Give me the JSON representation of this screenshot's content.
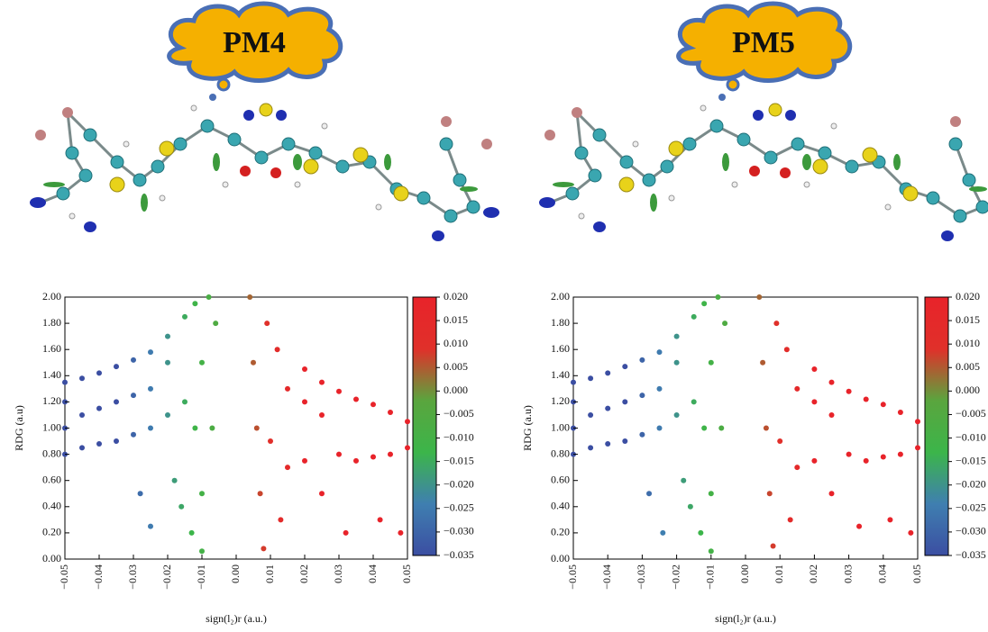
{
  "chart_data": [
    {
      "type": "scatter",
      "title": "PM4",
      "x_label": "sign(l₂)r (a.u.)",
      "y_label": "RDG (a.u)",
      "xlim": [
        -0.05,
        0.05
      ],
      "ylim": [
        0,
        2
      ],
      "xticks": [
        {
          "value": -0.05,
          "label": "−0.05"
        },
        {
          "value": -0.04,
          "label": "−0.04"
        },
        {
          "value": -0.03,
          "label": "−0.03"
        },
        {
          "value": -0.02,
          "label": "−0.02"
        },
        {
          "value": -0.01,
          "label": "−0.01"
        },
        {
          "value": 0,
          "label": "0.00"
        },
        {
          "value": 0.01,
          "label": "0.01"
        },
        {
          "value": 0.02,
          "label": "0.02"
        },
        {
          "value": 0.03,
          "label": "0.03"
        },
        {
          "value": 0.04,
          "label": "0.04"
        },
        {
          "value": 0.05,
          "label": "0.05"
        }
      ],
      "yticks": [
        {
          "value": 0,
          "label": "0.00"
        },
        {
          "value": 0.2,
          "label": "0.20"
        },
        {
          "value": 0.4,
          "label": "0.40"
        },
        {
          "value": 0.6,
          "label": "0.60"
        },
        {
          "value": 0.8,
          "label": "0.80"
        },
        {
          "value": 1,
          "label": "1.00"
        },
        {
          "value": 1.2,
          "label": "1.20"
        },
        {
          "value": 1.4,
          "label": "1.40"
        },
        {
          "value": 1.6,
          "label": "1.60"
        },
        {
          "value": 1.8,
          "label": "1.80"
        },
        {
          "value": 2,
          "label": "2.00"
        }
      ],
      "colorbar_lim": [
        -0.035,
        0.02
      ],
      "colorbar_ticks": [
        {
          "value": 0.02,
          "label": "0.020"
        },
        {
          "value": 0.015,
          "label": "0.015"
        },
        {
          "value": 0.01,
          "label": "0.010"
        },
        {
          "value": 0.005,
          "label": "0.005"
        },
        {
          "value": 0,
          "label": "0.000"
        },
        {
          "value": -0.005,
          "label": "−0.005"
        },
        {
          "value": -0.01,
          "label": "−0.010"
        },
        {
          "value": -0.015,
          "label": "−0.015"
        },
        {
          "value": -0.02,
          "label": "−0.020"
        },
        {
          "value": -0.025,
          "label": "−0.025"
        },
        {
          "value": -0.03,
          "label": "−0.030"
        },
        {
          "value": -0.035,
          "label": "−0.035"
        }
      ],
      "colormap": [
        "#3b4ea2",
        "#3f7fb0",
        "#3cb54a",
        "#5aa53e",
        "#e0302a",
        "#e8232a"
      ],
      "x": [
        -0.05,
        -0.05,
        -0.05,
        -0.05,
        -0.045,
        -0.045,
        -0.045,
        -0.04,
        -0.04,
        -0.04,
        -0.035,
        -0.035,
        -0.035,
        -0.03,
        -0.03,
        -0.03,
        -0.025,
        -0.025,
        -0.025,
        -0.028,
        -0.025,
        -0.02,
        -0.02,
        -0.02,
        -0.018,
        -0.016,
        -0.015,
        -0.015,
        -0.013,
        -0.012,
        -0.012,
        -0.01,
        -0.01,
        -0.01,
        -0.008,
        -0.007,
        -0.006,
        0.004,
        0.005,
        0.006,
        0.007,
        0.008,
        0.009,
        0.01,
        0.012,
        0.013,
        0.015,
        0.015,
        0.02,
        0.02,
        0.02,
        0.025,
        0.025,
        0.025,
        0.03,
        0.03,
        0.032,
        0.035,
        0.035,
        0.04,
        0.04,
        0.042,
        0.045,
        0.045,
        0.048,
        0.05,
        0.05
      ],
      "y": [
        0.8,
        1.0,
        1.2,
        1.35,
        0.85,
        1.1,
        1.38,
        0.88,
        1.15,
        1.42,
        0.9,
        1.2,
        1.47,
        0.95,
        1.25,
        1.52,
        1.0,
        1.3,
        1.58,
        0.5,
        0.25,
        1.1,
        1.5,
        1.7,
        0.6,
        0.4,
        1.2,
        1.85,
        0.2,
        1.0,
        1.95,
        0.06,
        0.5,
        1.5,
        2.0,
        1.0,
        1.8,
        2.0,
        1.5,
        1.0,
        0.5,
        0.08,
        1.8,
        0.9,
        1.6,
        0.3,
        0.7,
        1.3,
        0.75,
        1.2,
        1.45,
        0.5,
        1.1,
        1.35,
        0.8,
        1.28,
        0.2,
        0.75,
        1.22,
        0.78,
        1.18,
        0.3,
        0.8,
        1.12,
        0.2,
        0.85,
        1.05
      ]
    },
    {
      "type": "scatter",
      "title": "PM5",
      "x_label": "sign(l₂)r (a.u.)",
      "y_label": "RDG (a.u)",
      "xlim": [
        -0.05,
        0.05
      ],
      "ylim": [
        0,
        2
      ],
      "xticks": [
        {
          "value": -0.05,
          "label": "−0.05"
        },
        {
          "value": -0.04,
          "label": "−0.04"
        },
        {
          "value": -0.03,
          "label": "−0.03"
        },
        {
          "value": -0.02,
          "label": "−0.02"
        },
        {
          "value": -0.01,
          "label": "−0.01"
        },
        {
          "value": 0,
          "label": "0.00"
        },
        {
          "value": 0.01,
          "label": "0.01"
        },
        {
          "value": 0.02,
          "label": "0.02"
        },
        {
          "value": 0.03,
          "label": "0.03"
        },
        {
          "value": 0.04,
          "label": "0.04"
        },
        {
          "value": 0.05,
          "label": "0.05"
        }
      ],
      "yticks": [
        {
          "value": 0,
          "label": "0.00"
        },
        {
          "value": 0.2,
          "label": "0.20"
        },
        {
          "value": 0.4,
          "label": "0.40"
        },
        {
          "value": 0.6,
          "label": "0.60"
        },
        {
          "value": 0.8,
          "label": "0.80"
        },
        {
          "value": 1,
          "label": "1.00"
        },
        {
          "value": 1.2,
          "label": "1.20"
        },
        {
          "value": 1.4,
          "label": "1.40"
        },
        {
          "value": 1.6,
          "label": "1.60"
        },
        {
          "value": 1.8,
          "label": "1.80"
        },
        {
          "value": 2,
          "label": "2.00"
        }
      ],
      "colorbar_lim": [
        -0.035,
        0.02
      ],
      "colorbar_ticks": [
        {
          "value": 0.02,
          "label": "0.020"
        },
        {
          "value": 0.015,
          "label": "0.015"
        },
        {
          "value": 0.01,
          "label": "0.010"
        },
        {
          "value": 0.005,
          "label": "0.005"
        },
        {
          "value": 0,
          "label": "0.000"
        },
        {
          "value": -0.005,
          "label": "−0.005"
        },
        {
          "value": -0.01,
          "label": "−0.010"
        },
        {
          "value": -0.015,
          "label": "−0.015"
        },
        {
          "value": -0.02,
          "label": "−0.020"
        },
        {
          "value": -0.025,
          "label": "−0.025"
        },
        {
          "value": -0.03,
          "label": "−0.030"
        },
        {
          "value": -0.035,
          "label": "−0.035"
        }
      ],
      "colormap": [
        "#3b4ea2",
        "#3f7fb0",
        "#3cb54a",
        "#5aa53e",
        "#e0302a",
        "#e8232a"
      ],
      "x": [
        -0.05,
        -0.05,
        -0.05,
        -0.05,
        -0.045,
        -0.045,
        -0.045,
        -0.04,
        -0.04,
        -0.04,
        -0.035,
        -0.035,
        -0.035,
        -0.03,
        -0.03,
        -0.03,
        -0.025,
        -0.025,
        -0.025,
        -0.028,
        -0.024,
        -0.02,
        -0.02,
        -0.02,
        -0.018,
        -0.016,
        -0.015,
        -0.015,
        -0.013,
        -0.012,
        -0.012,
        -0.01,
        -0.01,
        -0.01,
        -0.008,
        -0.007,
        -0.006,
        0.004,
        0.005,
        0.006,
        0.007,
        0.008,
        0.009,
        0.01,
        0.012,
        0.013,
        0.015,
        0.015,
        0.02,
        0.02,
        0.02,
        0.025,
        0.025,
        0.025,
        0.03,
        0.03,
        0.033,
        0.035,
        0.035,
        0.04,
        0.04,
        0.042,
        0.045,
        0.045,
        0.048,
        0.05,
        0.05
      ],
      "y": [
        0.8,
        1.0,
        1.2,
        1.35,
        0.85,
        1.1,
        1.38,
        0.88,
        1.15,
        1.42,
        0.9,
        1.2,
        1.47,
        0.95,
        1.25,
        1.52,
        1.0,
        1.3,
        1.58,
        0.5,
        0.2,
        1.1,
        1.5,
        1.7,
        0.6,
        0.4,
        1.2,
        1.85,
        0.2,
        1.0,
        1.95,
        0.06,
        0.5,
        1.5,
        2.0,
        1.0,
        1.8,
        2.0,
        1.5,
        1.0,
        0.5,
        0.1,
        1.8,
        0.9,
        1.6,
        0.3,
        0.7,
        1.3,
        0.75,
        1.2,
        1.45,
        0.5,
        1.1,
        1.35,
        0.8,
        1.28,
        0.25,
        0.75,
        1.22,
        0.78,
        1.18,
        0.3,
        0.8,
        1.12,
        0.2,
        0.85,
        1.05
      ]
    }
  ]
}
